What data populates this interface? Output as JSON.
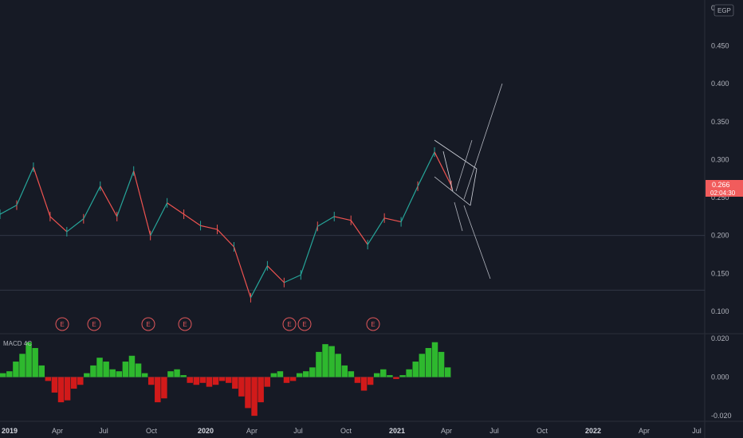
{
  "chart_data": [
    {
      "type": "candlestick",
      "symbol_currency": "EGP",
      "x_axis_ticks": [
        "2019",
        "Apr",
        "Jul",
        "Oct",
        "2020",
        "Apr",
        "Jul",
        "Oct",
        "2021",
        "Apr",
        "Jul",
        "Oct",
        "2022",
        "Apr",
        "Jul"
      ],
      "y_axis_ticks": [
        "0.500",
        "0.450",
        "0.400",
        "0.350",
        "0.300",
        "0.250",
        "0.200",
        "0.150",
        "0.100"
      ],
      "ylim": [
        0.08,
        0.5
      ],
      "last_price": "0.266",
      "countdown": "02:04:30",
      "horizontal_levels": [
        0.2,
        0.128
      ],
      "earnings_markers": [
        "E",
        "E",
        "E",
        "E",
        "E",
        "E",
        "E"
      ],
      "series": [
        {
          "name": "",
          "x": [
            "2019-01",
            "2019-02",
            "2019-03",
            "2019-04",
            "2019-05",
            "2019-06",
            "2019-07",
            "2019-08",
            "2019-09",
            "2019-10",
            "2019-11",
            "2019-12",
            "2020-01",
            "2020-02",
            "2020-03",
            "2020-04",
            "2020-05",
            "2020-06",
            "2020-07",
            "2020-08",
            "2020-09",
            "2020-10",
            "2020-11",
            "2020-12",
            "2021-01",
            "2021-02",
            "2021-03",
            "2021-04"
          ],
          "values": [
            0.228,
            0.24,
            0.29,
            0.225,
            0.205,
            0.222,
            0.265,
            0.225,
            0.285,
            0.2,
            0.243,
            0.228,
            0.213,
            0.208,
            0.185,
            0.118,
            0.16,
            0.138,
            0.148,
            0.212,
            0.225,
            0.22,
            0.188,
            0.223,
            0.218,
            0.265,
            0.31,
            0.266
          ]
        }
      ],
      "annotations": [
        "projection-arrows",
        "descending-channel"
      ]
    },
    {
      "type": "bar",
      "title": "MACD 4C",
      "y_axis_ticks": [
        "0.020",
        "0.000",
        "-0.020"
      ],
      "ylim": [
        -0.022,
        0.022
      ],
      "values": [
        0.002,
        0.003,
        0.008,
        0.012,
        0.018,
        0.015,
        0.006,
        -0.002,
        -0.008,
        -0.013,
        -0.012,
        -0.006,
        -0.004,
        0.002,
        0.006,
        0.01,
        0.008,
        0.004,
        0.003,
        0.008,
        0.011,
        0.007,
        0.002,
        -0.004,
        -0.013,
        -0.011,
        0.003,
        0.004,
        0.001,
        -0.003,
        -0.004,
        -0.003,
        -0.005,
        -0.004,
        -0.002,
        -0.003,
        -0.006,
        -0.01,
        -0.016,
        -0.02,
        -0.013,
        -0.005,
        0.002,
        0.003,
        -0.003,
        -0.002,
        0.002,
        0.003,
        0.005,
        0.013,
        0.017,
        0.016,
        0.012,
        0.006,
        0.003,
        -0.003,
        -0.007,
        -0.004,
        0.002,
        0.004,
        0.001,
        -0.001,
        0.001,
        0.004,
        0.008,
        0.012,
        0.015,
        0.018,
        0.013,
        0.005
      ]
    }
  ]
}
